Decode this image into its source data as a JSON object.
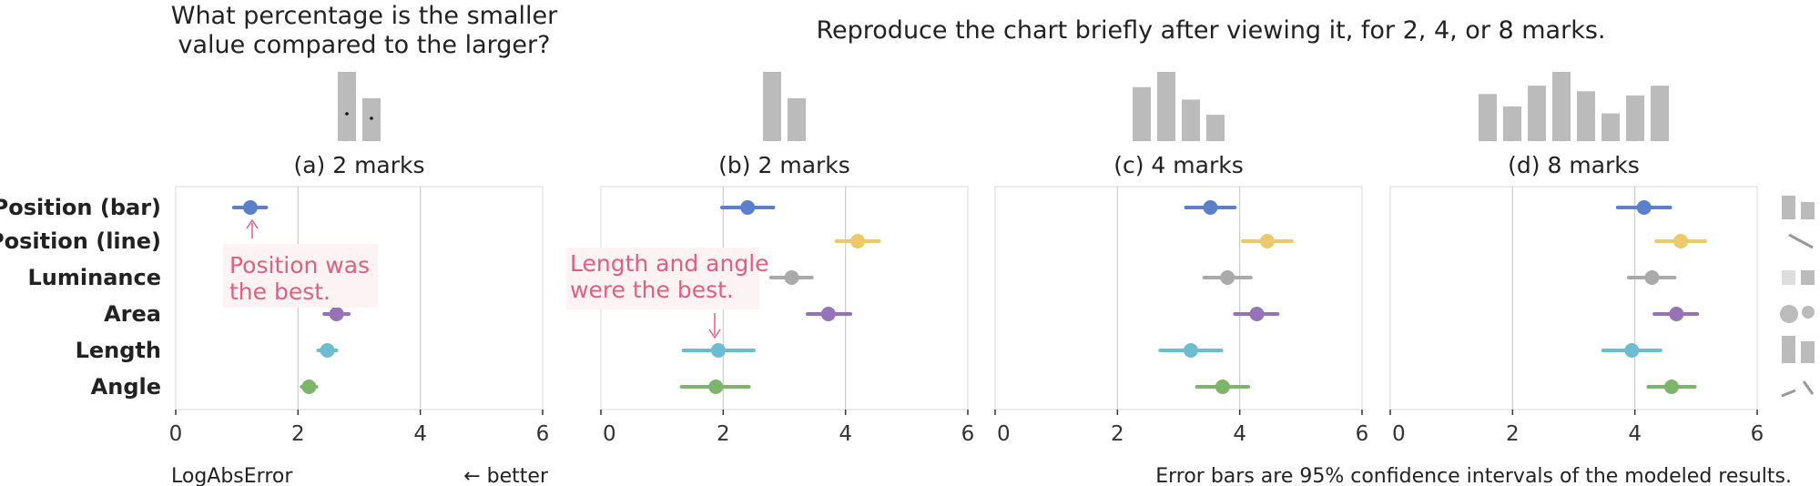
{
  "question_title_lines": [
    "What percentage is the smaller",
    "value compared to the larger?"
  ],
  "reproduce_title": "Reproduce the chart briefly after viewing it, for 2, 4, or 8 marks.",
  "xlabel": "LogAbsError",
  "better_label": "← better",
  "footnote": "Error bars are 95% confidence intervals of the modeled results.",
  "annotations": {
    "a": [
      "Position was",
      "the best."
    ],
    "b": [
      "Length and angle",
      "were the best."
    ]
  },
  "colors": {
    "Position (bar)": "#5b7fcb",
    "Position (line)": "#ecc96a",
    "Luminance": "#aaaaaa",
    "Area": "#9673b8",
    "Length": "#6dbdd2",
    "Angle": "#7db56a",
    "annotation": "#e06080",
    "gray_mark": "#bbbbbb"
  },
  "chart_data": {
    "type": "scatter",
    "encodings": [
      "Position (bar)",
      "Position (line)",
      "Luminance",
      "Area",
      "Length",
      "Angle"
    ],
    "xlim": [
      0,
      6
    ],
    "xticks": [
      0,
      2,
      4,
      6
    ],
    "xticklabels": [
      "0",
      "2",
      "4",
      "6"
    ],
    "panels": [
      {
        "id": "a",
        "label": "(a) 2 marks",
        "example_bars": [
          1.0,
          0.62
        ],
        "points": [
          {
            "encoding": "Position (bar)",
            "mean": 1.22,
            "low": 0.95,
            "high": 1.48
          },
          {
            "encoding": "Area",
            "mean": 2.63,
            "low": 2.43,
            "high": 2.83
          },
          {
            "encoding": "Length",
            "mean": 2.48,
            "low": 2.33,
            "high": 2.63
          },
          {
            "encoding": "Angle",
            "mean": 2.18,
            "low": 2.06,
            "high": 2.3
          }
        ]
      },
      {
        "id": "b",
        "label": "(b) 2 marks",
        "example_bars": [
          1.0,
          0.62
        ],
        "points": [
          {
            "encoding": "Position (bar)",
            "mean": 2.4,
            "low": 1.98,
            "high": 2.82
          },
          {
            "encoding": "Position (line)",
            "mean": 4.2,
            "low": 3.85,
            "high": 4.55
          },
          {
            "encoding": "Luminance",
            "mean": 3.12,
            "low": 2.78,
            "high": 3.45
          },
          {
            "encoding": "Area",
            "mean": 3.72,
            "low": 3.38,
            "high": 4.08
          },
          {
            "encoding": "Length",
            "mean": 1.92,
            "low": 1.35,
            "high": 2.5
          },
          {
            "encoding": "Angle",
            "mean": 1.88,
            "low": 1.32,
            "high": 2.42
          }
        ]
      },
      {
        "id": "c",
        "label": "(c) 4 marks",
        "example_bars": [
          0.78,
          1.0,
          0.6,
          0.38
        ],
        "points": [
          {
            "encoding": "Position (bar)",
            "mean": 3.52,
            "low": 3.12,
            "high": 3.92
          },
          {
            "encoding": "Position (line)",
            "mean": 4.45,
            "low": 4.05,
            "high": 4.85
          },
          {
            "encoding": "Luminance",
            "mean": 3.8,
            "low": 3.42,
            "high": 4.18
          },
          {
            "encoding": "Area",
            "mean": 4.28,
            "low": 3.92,
            "high": 4.62
          },
          {
            "encoding": "Length",
            "mean": 3.2,
            "low": 2.7,
            "high": 3.7
          },
          {
            "encoding": "Angle",
            "mean": 3.72,
            "low": 3.3,
            "high": 4.14
          }
        ]
      },
      {
        "id": "d",
        "label": "(d) 8 marks",
        "example_bars": [
          0.68,
          0.5,
          0.8,
          1.0,
          0.72,
          0.4,
          0.66,
          0.8
        ],
        "points": [
          {
            "encoding": "Position (bar)",
            "mean": 4.15,
            "low": 3.72,
            "high": 4.58
          },
          {
            "encoding": "Position (line)",
            "mean": 4.75,
            "low": 4.35,
            "high": 5.15
          },
          {
            "encoding": "Luminance",
            "mean": 4.28,
            "low": 3.9,
            "high": 4.65
          },
          {
            "encoding": "Area",
            "mean": 4.68,
            "low": 4.32,
            "high": 5.02
          },
          {
            "encoding": "Length",
            "mean": 3.95,
            "low": 3.48,
            "high": 4.42
          },
          {
            "encoding": "Angle",
            "mean": 4.6,
            "low": 4.22,
            "high": 4.98
          }
        ]
      }
    ]
  }
}
